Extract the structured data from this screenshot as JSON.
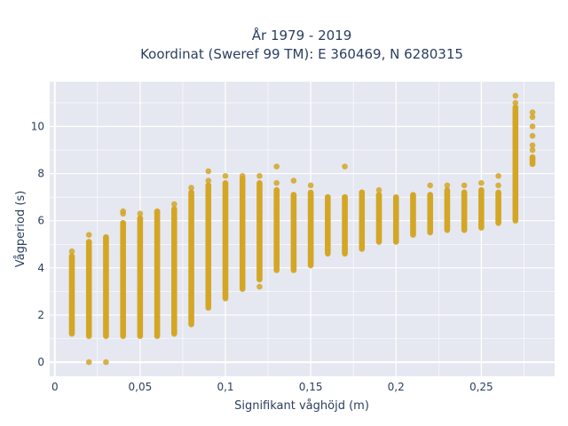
{
  "chart_data": {
    "type": "scatter",
    "title_line1": "År 1979 - 2019",
    "title_line2": "Koordinat (Sweref 99 TM): E 360469, N 6280315",
    "xlabel": "Signifikant våghöjd (m)",
    "ylabel": "Vågperiod (s)",
    "xlim": [
      -0.003,
      0.293
    ],
    "ylim": [
      -0.6,
      11.9
    ],
    "xticks": [
      {
        "value": 0,
        "label": "0"
      },
      {
        "value": 0.05,
        "label": "0,05"
      },
      {
        "value": 0.1,
        "label": "0,1"
      },
      {
        "value": 0.15,
        "label": "0,15"
      },
      {
        "value": 0.2,
        "label": "0,2"
      },
      {
        "value": 0.25,
        "label": "0,25"
      }
    ],
    "yticks": [
      {
        "value": 0,
        "label": "0"
      },
      {
        "value": 2,
        "label": "2"
      },
      {
        "value": 4,
        "label": "4"
      },
      {
        "value": 6,
        "label": "6"
      },
      {
        "value": 8,
        "label": "8"
      },
      {
        "value": 10,
        "label": "10"
      }
    ],
    "colors": {
      "marker": "#d4a626",
      "plot_bg": "#e5e8f0",
      "grid": "#ffffff",
      "text": "#2a3f5f"
    },
    "columns": [
      {
        "x": 0.01,
        "ymin": 1.2,
        "ymax": 4.5,
        "extra": [
          4.7
        ]
      },
      {
        "x": 0.02,
        "ymin": 1.1,
        "ymax": 5.1,
        "extra": [
          0.0,
          5.4
        ]
      },
      {
        "x": 0.03,
        "ymin": 1.1,
        "ymax": 5.3,
        "extra": [
          0.0
        ]
      },
      {
        "x": 0.04,
        "ymin": 1.1,
        "ymax": 5.9,
        "extra": [
          6.3,
          6.4
        ]
      },
      {
        "x": 0.05,
        "ymin": 1.1,
        "ymax": 6.1,
        "extra": [
          6.3
        ]
      },
      {
        "x": 0.06,
        "ymin": 1.1,
        "ymax": 6.4,
        "extra": []
      },
      {
        "x": 0.07,
        "ymin": 1.2,
        "ymax": 6.5,
        "extra": [
          6.7
        ]
      },
      {
        "x": 0.08,
        "ymin": 1.6,
        "ymax": 7.2,
        "extra": [
          7.4
        ]
      },
      {
        "x": 0.09,
        "ymin": 2.3,
        "ymax": 7.5,
        "extra": [
          7.7,
          8.1
        ]
      },
      {
        "x": 0.1,
        "ymin": 2.7,
        "ymax": 7.6,
        "extra": [
          7.9
        ]
      },
      {
        "x": 0.11,
        "ymin": 3.1,
        "ymax": 7.8,
        "extra": [
          7.9
        ]
      },
      {
        "x": 0.12,
        "ymin": 3.5,
        "ymax": 7.6,
        "extra": [
          3.2,
          7.9
        ]
      },
      {
        "x": 0.13,
        "ymin": 3.9,
        "ymax": 7.3,
        "extra": [
          7.6,
          8.3
        ]
      },
      {
        "x": 0.14,
        "ymin": 3.9,
        "ymax": 7.1,
        "extra": [
          7.7
        ]
      },
      {
        "x": 0.15,
        "ymin": 4.1,
        "ymax": 7.2,
        "extra": [
          7.5
        ]
      },
      {
        "x": 0.16,
        "ymin": 4.6,
        "ymax": 7.0,
        "extra": []
      },
      {
        "x": 0.17,
        "ymin": 4.6,
        "ymax": 7.0,
        "extra": [
          8.3
        ]
      },
      {
        "x": 0.18,
        "ymin": 4.8,
        "ymax": 7.2,
        "extra": []
      },
      {
        "x": 0.19,
        "ymin": 5.1,
        "ymax": 7.1,
        "extra": [
          7.3
        ]
      },
      {
        "x": 0.2,
        "ymin": 5.1,
        "ymax": 7.0,
        "extra": []
      },
      {
        "x": 0.21,
        "ymin": 5.4,
        "ymax": 7.1,
        "extra": []
      },
      {
        "x": 0.22,
        "ymin": 5.5,
        "ymax": 7.1,
        "extra": [
          7.5
        ]
      },
      {
        "x": 0.23,
        "ymin": 5.6,
        "ymax": 7.3,
        "extra": [
          7.5
        ]
      },
      {
        "x": 0.24,
        "ymin": 5.6,
        "ymax": 7.2,
        "extra": [
          7.5
        ]
      },
      {
        "x": 0.25,
        "ymin": 5.7,
        "ymax": 7.3,
        "extra": [
          7.6
        ]
      },
      {
        "x": 0.26,
        "ymin": 5.9,
        "ymax": 7.2,
        "extra": [
          7.5,
          7.9
        ]
      },
      {
        "x": 0.27,
        "ymin": 6.0,
        "ymax": 10.8,
        "extra": [
          11.0,
          11.3
        ]
      },
      {
        "x": 0.28,
        "ymin": 8.4,
        "ymax": 8.7,
        "extra": [
          9.0,
          9.2,
          9.6,
          10.0,
          10.4,
          10.6
        ]
      }
    ]
  }
}
